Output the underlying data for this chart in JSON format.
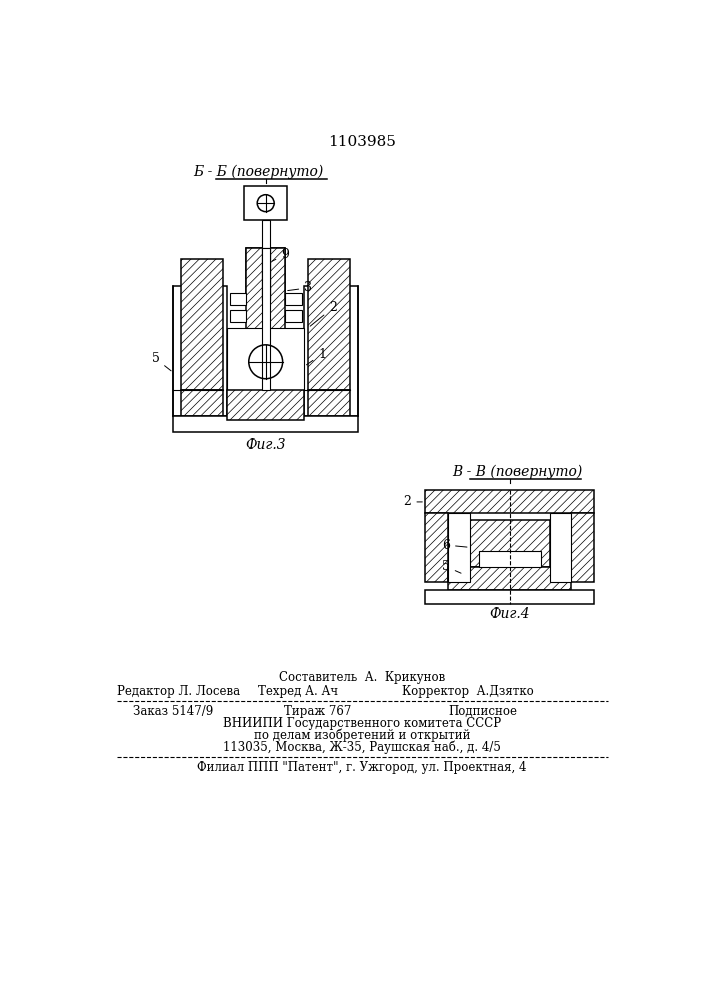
{
  "patent_number": "1103985",
  "fig3_label": "Фиг.3",
  "fig4_label": "Фиг.4",
  "section_bb": "Б - Б (повернуто)",
  "section_vv": "В - В (повернуто)",
  "footer_line1": "Составитель  А.  Крикунов",
  "footer_line2a": "Редактор Л. Лосева",
  "footer_line2b": "Техред А. Ач",
  "footer_line2c": "Корректор  А.Дзятко",
  "footer_line3a": "Заказ 5147/9",
  "footer_line3b": "Тираж 767",
  "footer_line3c": "Подписное",
  "footer_line4": "ВНИИПИ Государственного комитета СССР",
  "footer_line5": "по делам изобретений и открытий",
  "footer_line6": "113035, Москва, Ж-35, Раушская наб., д. 4/5",
  "footer_line7": "Филиал ППП \"Патент\", г. Ужгород, ул. Проектная, 4",
  "bg_color": "#ffffff",
  "lc": "#000000"
}
